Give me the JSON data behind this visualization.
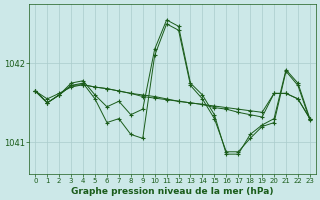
{
  "title": "Graphe pression niveau de la mer (hPa)",
  "bg_color": "#cce8e8",
  "grid_color": "#aacccc",
  "line_color": "#1a5c1a",
  "xlim": [
    -0.5,
    23.5
  ],
  "ylim": [
    1040.6,
    1042.75
  ],
  "yticks": [
    1041,
    1042
  ],
  "xticks": [
    0,
    1,
    2,
    3,
    4,
    5,
    6,
    7,
    8,
    9,
    10,
    11,
    12,
    13,
    14,
    15,
    16,
    17,
    18,
    19,
    20,
    21,
    22,
    23
  ],
  "series": [
    [
      1041.65,
      1041.55,
      1041.62,
      1041.7,
      1041.73,
      1041.7,
      1041.68,
      1041.65,
      1041.62,
      1041.6,
      1041.58,
      1041.55,
      1041.52,
      1041.5,
      1041.48,
      1041.46,
      1041.44,
      1041.42,
      1041.4,
      1041.38,
      1041.62,
      1041.62,
      1041.55,
      1041.3
    ],
    [
      1041.65,
      1041.5,
      1041.6,
      1041.72,
      1041.75,
      1041.55,
      1041.25,
      1041.3,
      1041.1,
      1041.05,
      1042.1,
      1042.5,
      1042.42,
      1041.72,
      1041.55,
      1041.3,
      1040.88,
      1040.88,
      1041.05,
      1041.2,
      1041.25,
      1041.9,
      1041.72,
      1041.28
    ],
    [
      1041.65,
      1041.5,
      1041.6,
      1041.75,
      1041.78,
      1041.6,
      1041.45,
      1041.52,
      1041.35,
      1041.42,
      1042.18,
      1042.55,
      1042.47,
      1041.75,
      1041.6,
      1041.35,
      1040.85,
      1040.85,
      1041.1,
      1041.22,
      1041.3,
      1041.92,
      1041.75,
      1041.3
    ],
    [
      1041.65,
      1041.5,
      1041.6,
      1041.72,
      1041.73,
      1041.7,
      1041.68,
      1041.65,
      1041.62,
      1041.58,
      1041.56,
      1041.54,
      1041.52,
      1041.5,
      1041.48,
      1041.44,
      1041.42,
      1041.38,
      1041.35,
      1041.32,
      1041.62,
      1041.62,
      1041.55,
      1041.3
    ]
  ]
}
